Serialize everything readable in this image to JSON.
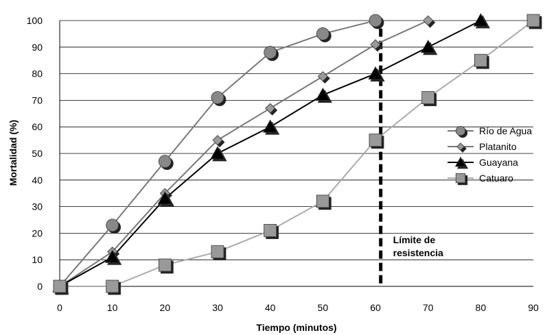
{
  "chart_data": {
    "type": "line",
    "xlabel": "Tiempo (minutos)",
    "ylabel": "Mortalidad (%)",
    "xlim": [
      0,
      90
    ],
    "ylim": [
      0,
      100
    ],
    "x_ticks": [
      "0",
      "10",
      "20",
      "30",
      "40",
      "50",
      "60",
      "70",
      "80",
      "90"
    ],
    "y_ticks": [
      "0",
      "10",
      "20",
      "30",
      "40",
      "50",
      "60",
      "70",
      "80",
      "90",
      "100"
    ],
    "grid": "horizontal",
    "legend_position": "right",
    "series": [
      {
        "name": "Río de Agua",
        "marker": "circle",
        "color": "#777777",
        "marker_color": "#888888",
        "points": [
          [
            0,
            0
          ],
          [
            10,
            23
          ],
          [
            20,
            47
          ],
          [
            30,
            71
          ],
          [
            40,
            88
          ],
          [
            50,
            95
          ],
          [
            60,
            100
          ]
        ]
      },
      {
        "name": "Platanito",
        "marker": "diamond",
        "color": "#777777",
        "marker_color": "#999999",
        "points": [
          [
            0,
            0
          ],
          [
            10,
            13
          ],
          [
            20,
            35
          ],
          [
            30,
            55
          ],
          [
            40,
            67
          ],
          [
            50,
            79
          ],
          [
            60,
            91
          ],
          [
            70,
            100
          ]
        ]
      },
      {
        "name": "Guayana",
        "marker": "triangle",
        "color": "#000000",
        "marker_color": "#000000",
        "points": [
          [
            0,
            0
          ],
          [
            10,
            11
          ],
          [
            20,
            33
          ],
          [
            30,
            50
          ],
          [
            40,
            60
          ],
          [
            50,
            72
          ],
          [
            60,
            80
          ],
          [
            70,
            90
          ],
          [
            80,
            100
          ]
        ]
      },
      {
        "name": "Catuaro",
        "marker": "square",
        "color": "#aaaaaa",
        "marker_color": "#999999",
        "points": [
          [
            0,
            0
          ],
          [
            10,
            0
          ],
          [
            20,
            8
          ],
          [
            30,
            13
          ],
          [
            40,
            21
          ],
          [
            50,
            32
          ],
          [
            60,
            55
          ],
          [
            70,
            71
          ],
          [
            80,
            85
          ],
          [
            90,
            100
          ]
        ]
      }
    ],
    "annotation": {
      "x": 61,
      "style": "dashed vertical line",
      "color": "#000000",
      "lines": [
        "Límite de",
        "resistencia"
      ]
    }
  }
}
